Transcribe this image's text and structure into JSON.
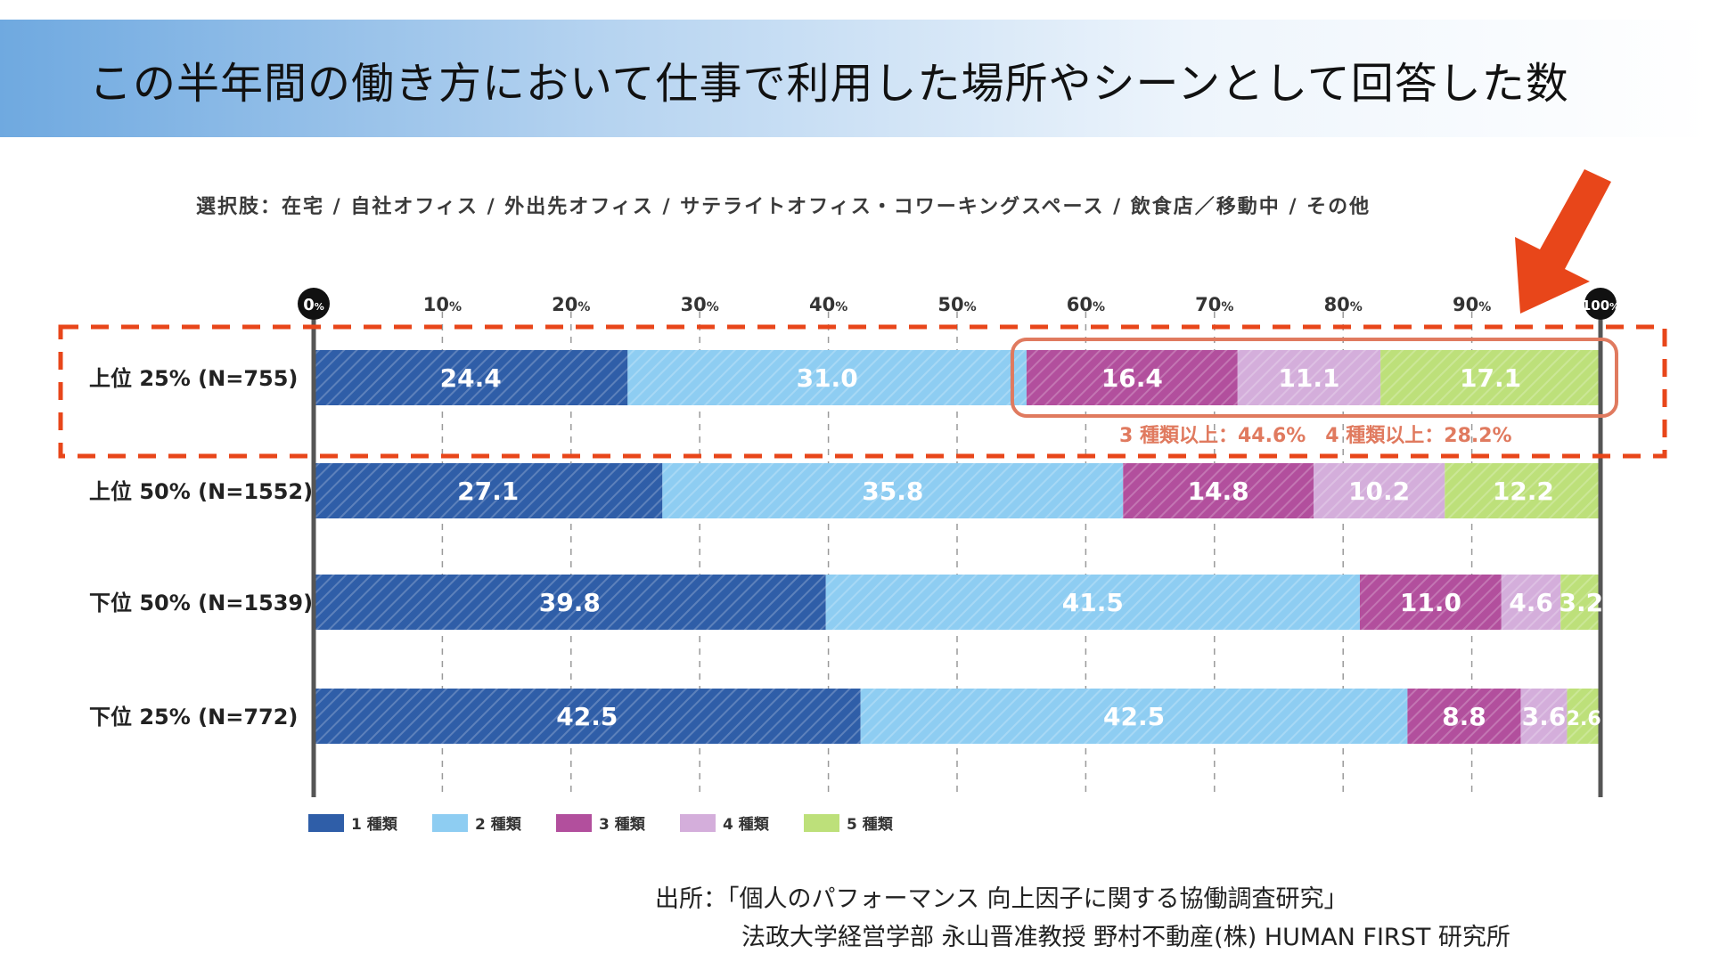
{
  "page": {
    "title": "この半年間の働き方において仕事で利用した場所やシーンとして回答した数",
    "choices": "選択肢：在宅 / 自社オフィス / 外出先オフィス / サテライトオフィス・コワーキングスペース / 飲食店／移動中 / その他",
    "source_line1": "出所：「個人のパフォーマンス 向上因子に関する協働調査研究」",
    "source_line2": "法政大学経営学部 永山晋准教授 野村不動産(株) HUMAN FIRST 研究所",
    "highlight_note": "3 種類以上：44.6%　4 種類以上：28.2%"
  },
  "chart_data": {
    "type": "bar",
    "orientation": "horizontal",
    "stacked": true,
    "categories": [
      "上位 25% (N=755)",
      "上位 50% (N=1552)",
      "下位 50% (N=1539)",
      "下位 25% (N=772)"
    ],
    "series": [
      {
        "name": "1 種類",
        "color": "#2f5ea8",
        "values": [
          24.4,
          27.1,
          39.8,
          42.5
        ]
      },
      {
        "name": "2 種類",
        "color": "#8ecdf2",
        "values": [
          31.0,
          35.8,
          41.5,
          42.5
        ]
      },
      {
        "name": "3 種類",
        "color": "#b24f9d",
        "values": [
          16.4,
          14.8,
          11.0,
          8.8
        ]
      },
      {
        "name": "4 種類",
        "color": "#d4aedb",
        "values": [
          11.1,
          10.2,
          4.6,
          3.6
        ]
      },
      {
        "name": "5 種類",
        "color": "#bde07a",
        "values": [
          17.1,
          12.2,
          3.2,
          2.6
        ]
      }
    ],
    "data_labels": [
      [
        "24.4",
        "31.0",
        "16.4",
        "11.1",
        "17.1"
      ],
      [
        "27.1",
        "35.8",
        "14.8",
        "10.2",
        "12.2"
      ],
      [
        "39.8",
        "41.5",
        "11.0",
        "4.6",
        "3.2"
      ],
      [
        "42.5",
        "42.5",
        "8.8",
        "3.6",
        "2.6"
      ]
    ],
    "xlim": [
      0,
      100
    ],
    "x_ticks": [
      {
        "num": "0",
        "unit": "%"
      },
      {
        "num": "10",
        "unit": "%"
      },
      {
        "num": "20",
        "unit": "%"
      },
      {
        "num": "30",
        "unit": "%"
      },
      {
        "num": "40",
        "unit": "%"
      },
      {
        "num": "50",
        "unit": "%"
      },
      {
        "num": "60",
        "unit": "%"
      },
      {
        "num": "70",
        "unit": "%"
      },
      {
        "num": "80",
        "unit": "%"
      },
      {
        "num": "90",
        "unit": "%"
      },
      {
        "num": "100",
        "unit": "%"
      }
    ],
    "legend": [
      "1 種類",
      "2 種類",
      "3 種類",
      "4 種類",
      "5 種類"
    ],
    "legend_position": "bottom-left",
    "grid": "vertical dashed",
    "highlight": {
      "row": 0,
      "from_series": 2,
      "color": "#e07a5f",
      "dashed_row_color": "#e8461a",
      "arrow_color": "#e8461a"
    }
  }
}
